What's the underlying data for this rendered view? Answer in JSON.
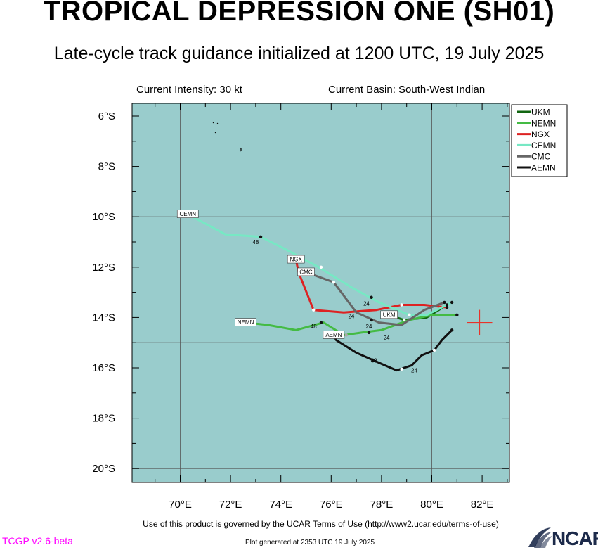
{
  "header": {
    "title": "TROPICAL DEPRESSION ONE (SH01)",
    "subtitle": "Late-cycle track guidance initialized at 1200 UTC, 19 July 2025",
    "current_intensity": "Current Intensity: 30 kt",
    "current_basin": "Current Basin: South-West Indian"
  },
  "footer": {
    "terms": "Use of this product is governed by the UCAR Terms of Use (http://www2.ucar.edu/terms-of-use)",
    "version": "TCGP v2.6-beta",
    "generated": "Plot generated at 2353 UTC   19 July 2025",
    "logo_text": "NCAR"
  },
  "colors": {
    "ocean": "#99cccc",
    "grid": "#555555",
    "current_position_marker": "#e8332a"
  },
  "chart_data": {
    "type": "map",
    "xlim": [
      68.2,
      83.3
    ],
    "ylim": [
      -20.5,
      -5.2
    ],
    "x_ticks": [
      70,
      72,
      74,
      76,
      78,
      80,
      82
    ],
    "x_tick_labels": [
      "70°E",
      "72°E",
      "74°E",
      "76°E",
      "78°E",
      "80°E",
      "82°E"
    ],
    "y_ticks": [
      -6,
      -8,
      -10,
      -12,
      -14,
      -16,
      -18,
      -20
    ],
    "y_tick_labels": [
      "6°S",
      "8°S",
      "10°S",
      "12°S",
      "14°S",
      "16°S",
      "18°S",
      "20°S"
    ],
    "gridlines": {
      "lon": [
        70,
        75,
        80
      ],
      "lat": [
        -10,
        -15,
        -20
      ]
    },
    "current_position": {
      "lon": 81.9,
      "lat": -14.2
    },
    "legend": {
      "placement": "top-right, outside plot",
      "entries": [
        "UKM",
        "NEMN",
        "NGX",
        "CEMN",
        "CMC",
        "AEMN"
      ]
    },
    "series": [
      {
        "name": "UKM",
        "color": "#116611",
        "end_label": "UKM",
        "points": [
          [
            80.6,
            -13.5
          ],
          [
            79.8,
            -14.0
          ],
          [
            78.9,
            -14.1
          ],
          [
            78.3,
            -13.9
          ]
        ],
        "dots": [
          [
            80.6,
            -13.5
          ],
          [
            78.9,
            -14.1
          ]
        ],
        "dot_colors": [
          "#111111",
          "#ffffff"
        ],
        "hour_labels": []
      },
      {
        "name": "NEMN",
        "color": "#44bb44",
        "end_label": "NEMN",
        "points": [
          [
            81.0,
            -13.9
          ],
          [
            80.0,
            -13.9
          ],
          [
            79.1,
            -14.1
          ],
          [
            78.0,
            -14.5
          ],
          [
            77.2,
            -14.6
          ],
          [
            76.5,
            -14.7
          ],
          [
            75.7,
            -14.2
          ],
          [
            74.6,
            -14.5
          ],
          [
            73.5,
            -14.3
          ],
          [
            72.6,
            -14.2
          ]
        ],
        "dots": [
          [
            81.0,
            -13.9
          ],
          [
            77.5,
            -14.6
          ],
          [
            76.6,
            -14.7
          ],
          [
            75.6,
            -14.2
          ]
        ],
        "dot_colors": [
          "#111111",
          "#111111",
          "#aaaaaa",
          "#111111"
        ],
        "hour_labels": [
          {
            "lon": 78.2,
            "lat": -14.8,
            "text": "24"
          },
          {
            "lon": 75.3,
            "lat": -14.35,
            "text": "48"
          }
        ]
      },
      {
        "name": "NGX",
        "color": "#dd2222",
        "end_label": "NGX",
        "points": [
          [
            80.6,
            -13.6
          ],
          [
            79.7,
            -13.5
          ],
          [
            78.8,
            -13.5
          ],
          [
            77.8,
            -13.7
          ],
          [
            76.5,
            -13.8
          ],
          [
            75.3,
            -13.7
          ],
          [
            74.7,
            -12.2
          ],
          [
            74.6,
            -11.7
          ]
        ],
        "dots": [
          [
            80.6,
            -13.6
          ],
          [
            78.8,
            -13.5
          ],
          [
            75.3,
            -13.7
          ]
        ],
        "dot_colors": [
          "#111111",
          "#ffffff",
          "#ffffff"
        ],
        "hour_labels": [
          {
            "lon": 76.8,
            "lat": -13.95,
            "text": "24"
          }
        ]
      },
      {
        "name": "CEMN",
        "color": "#77e8c4",
        "end_label": "CEMN",
        "points": [
          [
            80.8,
            -13.4
          ],
          [
            79.8,
            -13.9
          ],
          [
            79.1,
            -13.9
          ],
          [
            77.9,
            -13.4
          ],
          [
            76.8,
            -12.8
          ],
          [
            75.5,
            -12.0
          ],
          [
            74.2,
            -11.3
          ],
          [
            73.2,
            -10.8
          ],
          [
            71.8,
            -10.7
          ],
          [
            70.3,
            -9.9
          ]
        ],
        "dots": [
          [
            80.8,
            -13.4
          ],
          [
            79.1,
            -13.9
          ],
          [
            77.6,
            -13.2
          ],
          [
            75.6,
            -12.0
          ],
          [
            73.2,
            -10.8
          ]
        ],
        "dot_colors": [
          "#111111",
          "#ffffff",
          "#111111",
          "#ffffff",
          "#111111"
        ],
        "hour_labels": [
          {
            "lon": 77.4,
            "lat": -13.45,
            "text": "24"
          },
          {
            "lon": 73.0,
            "lat": -11.0,
            "text": "48"
          }
        ]
      },
      {
        "name": "CMC",
        "color": "#666666",
        "end_label": "CMC",
        "points": [
          [
            80.5,
            -13.4
          ],
          [
            79.7,
            -13.7
          ],
          [
            78.8,
            -14.3
          ],
          [
            77.9,
            -14.2
          ],
          [
            77.0,
            -13.8
          ],
          [
            76.1,
            -12.6
          ],
          [
            75.0,
            -12.2
          ]
        ],
        "dots": [
          [
            80.5,
            -13.4
          ],
          [
            77.6,
            -14.1
          ],
          [
            76.1,
            -12.6
          ]
        ],
        "dot_colors": [
          "#111111",
          "#111111",
          "#ffffff"
        ],
        "hour_labels": [
          {
            "lon": 77.5,
            "lat": -14.35,
            "text": "24"
          }
        ]
      },
      {
        "name": "AEMN",
        "color": "#111111",
        "end_label": "AEMN",
        "points": [
          [
            80.8,
            -14.5
          ],
          [
            80.4,
            -14.9
          ],
          [
            80.1,
            -15.3
          ],
          [
            79.6,
            -15.5
          ],
          [
            79.2,
            -15.9
          ],
          [
            78.6,
            -16.1
          ],
          [
            77.9,
            -15.8
          ],
          [
            77.0,
            -15.4
          ],
          [
            76.2,
            -14.9
          ],
          [
            76.1,
            -14.7
          ]
        ],
        "dots": [
          [
            80.8,
            -14.5
          ],
          [
            80.1,
            -15.3
          ],
          [
            78.8,
            -16.05
          ]
        ],
        "dot_colors": [
          "#111111",
          "#ffffff",
          "#ffffff"
        ],
        "hour_labels": [
          {
            "lon": 79.3,
            "lat": -16.1,
            "text": "24"
          },
          {
            "lon": 77.7,
            "lat": -15.7,
            "text": "48"
          }
        ]
      }
    ]
  }
}
